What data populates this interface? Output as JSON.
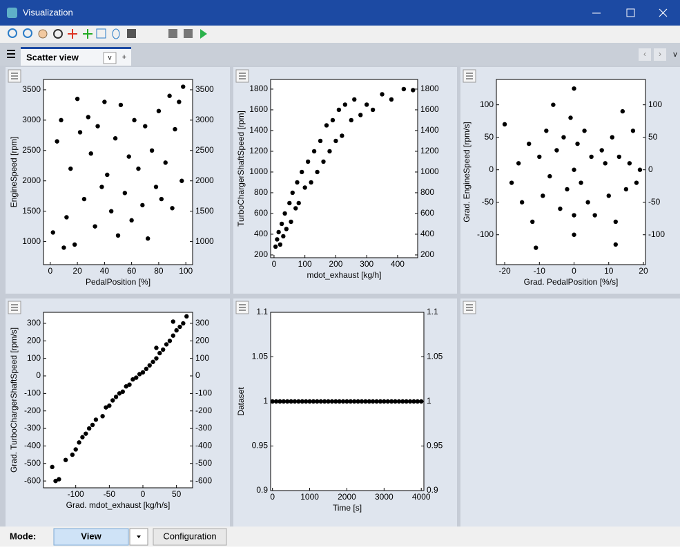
{
  "window": {
    "title": "Visualization"
  },
  "tab": {
    "label": "Scatter view",
    "menu": "v",
    "add": "+",
    "nav": [
      "‹",
      "›",
      "v"
    ]
  },
  "mode": {
    "label": "Mode:",
    "value": "View",
    "button": "Configuration"
  },
  "chart_data": [
    {
      "type": "scatter",
      "xlabel": "PedalPosition [%]",
      "ylabel": "EngineSpeed [rpm]",
      "color": "#000000",
      "xlim": [
        -5,
        105
      ],
      "ylim": [
        620,
        3670
      ],
      "xticks": [
        0,
        20,
        40,
        60,
        80,
        100
      ],
      "yticks": [
        1000,
        1500,
        2000,
        2500,
        3000,
        3500
      ],
      "y2lim": [
        620,
        3670
      ],
      "y2ticks": [
        1000,
        1500,
        2000,
        2500,
        3000,
        3500
      ],
      "x": [
        2,
        5,
        8,
        12,
        15,
        18,
        20,
        22,
        25,
        28,
        30,
        33,
        35,
        38,
        40,
        42,
        45,
        48,
        50,
        52,
        55,
        58,
        60,
        62,
        65,
        68,
        70,
        72,
        75,
        78,
        80,
        82,
        85,
        88,
        90,
        92,
        95,
        97,
        98,
        10
      ],
      "values": [
        1150,
        2650,
        3000,
        1400,
        2200,
        950,
        3350,
        2800,
        1700,
        3050,
        2450,
        1250,
        2900,
        1900,
        3300,
        2100,
        1500,
        2700,
        1100,
        3250,
        1800,
        2400,
        1350,
        3000,
        2200,
        1600,
        2900,
        1050,
        2500,
        1900,
        3150,
        1700,
        2300,
        3400,
        1550,
        2850,
        3300,
        2000,
        3550,
        900
      ]
    },
    {
      "type": "scatter",
      "xlabel": "mdot_exhaust [kg/h]",
      "ylabel": "TurboChargerShaftSpeed [rpm]",
      "color": "#000000",
      "xlim": [
        -11,
        465
      ],
      "ylim": [
        173,
        1893
      ],
      "xticks": [
        0,
        100,
        200,
        300,
        400
      ],
      "yticks": [
        200,
        400,
        600,
        800,
        1000,
        1200,
        1400,
        1600,
        1800
      ],
      "y2lim": [
        173,
        1893
      ],
      "y2ticks": [
        200,
        400,
        600,
        800,
        1000,
        1200,
        1400,
        1600,
        1800
      ],
      "x": [
        5,
        10,
        15,
        20,
        25,
        30,
        35,
        40,
        50,
        55,
        60,
        70,
        75,
        80,
        90,
        100,
        110,
        120,
        130,
        140,
        150,
        160,
        170,
        180,
        190,
        200,
        210,
        220,
        230,
        250,
        260,
        280,
        300,
        320,
        350,
        380,
        420,
        450
      ],
      "values": [
        280,
        350,
        420,
        300,
        500,
        380,
        600,
        450,
        700,
        520,
        800,
        650,
        900,
        700,
        1000,
        850,
        1100,
        900,
        1200,
        1000,
        1300,
        1100,
        1450,
        1200,
        1500,
        1300,
        1600,
        1350,
        1650,
        1500,
        1700,
        1550,
        1650,
        1600,
        1750,
        1700,
        1800,
        1790
      ]
    },
    {
      "type": "scatter",
      "xlabel": "Grad. PedalPosition [%/s]",
      "ylabel": "Grad. EngineSpeed [rpm/s]",
      "color": "#000000",
      "xlim": [
        -22.4,
        20.6
      ],
      "ylim": [
        -146,
        139
      ],
      "xticks": [
        -20,
        -10,
        0,
        10,
        20
      ],
      "yticks": [
        -100,
        -50,
        0,
        50,
        100
      ],
      "y2lim": [
        -146,
        139
      ],
      "y2ticks": [
        -100,
        -50,
        0,
        50,
        100
      ],
      "x": [
        -20,
        -18,
        -16,
        -15,
        -13,
        -12,
        -10,
        -9,
        -8,
        -7,
        -5,
        -4,
        -3,
        -2,
        -1,
        0,
        0,
        0,
        1,
        2,
        3,
        4,
        5,
        6,
        8,
        9,
        10,
        11,
        12,
        13,
        14,
        15,
        16,
        17,
        18,
        19,
        -6,
        0,
        12,
        -11
      ],
      "values": [
        70,
        -20,
        10,
        -50,
        40,
        -80,
        20,
        -40,
        60,
        -10,
        30,
        -60,
        50,
        -30,
        80,
        125,
        -100,
        0,
        40,
        -20,
        60,
        -50,
        20,
        -70,
        30,
        10,
        -40,
        50,
        -80,
        20,
        90,
        -30,
        10,
        60,
        -20,
        0,
        100,
        -70,
        -115,
        -120
      ]
    },
    {
      "type": "scatter",
      "xlabel": "Grad. mdot_exhaust [kg/h/s]",
      "ylabel": "Grad. TurboChargerShaftSpeed [rpm/s]",
      "color": "#000000",
      "xlim": [
        -148,
        74
      ],
      "ylim": [
        -639,
        363
      ],
      "xticks": [
        -100,
        -50,
        0,
        50
      ],
      "yticks": [
        -600,
        -500,
        -400,
        -300,
        -200,
        -100,
        0,
        100,
        200,
        300
      ],
      "y2lim": [
        -639,
        363
      ],
      "y2ticks": [
        -600,
        -500,
        -400,
        -300,
        -200,
        -100,
        0,
        100,
        200,
        300
      ],
      "x": [
        -135,
        -125,
        -115,
        -105,
        -100,
        -95,
        -90,
        -80,
        -75,
        -70,
        -60,
        -55,
        -50,
        -45,
        -40,
        -35,
        -30,
        -25,
        -20,
        -15,
        -10,
        -5,
        0,
        5,
        10,
        15,
        20,
        25,
        30,
        35,
        40,
        45,
        50,
        55,
        60,
        -130,
        -85,
        20,
        45,
        65
      ],
      "values": [
        -520,
        -590,
        -480,
        -450,
        -420,
        -380,
        -350,
        -300,
        -280,
        -250,
        -230,
        -180,
        -170,
        -140,
        -120,
        -100,
        -90,
        -60,
        -50,
        -20,
        -10,
        10,
        20,
        40,
        60,
        80,
        100,
        130,
        150,
        180,
        200,
        230,
        260,
        280,
        300,
        -600,
        -330,
        160,
        310,
        340
      ]
    },
    {
      "type": "scatter",
      "xlabel": "Time [s]",
      "ylabel": "Dataset",
      "color": "#000000",
      "xlim": [
        -50,
        4070
      ],
      "ylim": [
        0.9,
        1.1
      ],
      "xticks": [
        0,
        1000,
        2000,
        3000,
        4000
      ],
      "yticks": [
        0.9,
        0.95,
        1,
        1.05,
        1.1
      ],
      "y2lim": [
        0.9,
        1.1
      ],
      "y2ticks": [
        0.9,
        0.95,
        1,
        1.05,
        1.1
      ],
      "x": [
        0,
        100,
        200,
        300,
        400,
        500,
        600,
        700,
        800,
        900,
        1000,
        1100,
        1200,
        1300,
        1400,
        1500,
        1600,
        1700,
        1800,
        1900,
        2000,
        2100,
        2200,
        2300,
        2400,
        2500,
        2600,
        2700,
        2800,
        2900,
        3000,
        3100,
        3200,
        3300,
        3400,
        3500,
        3600,
        3700,
        3800,
        3900,
        4000
      ],
      "values": [
        1,
        1,
        1,
        1,
        1,
        1,
        1,
        1,
        1,
        1,
        1,
        1,
        1,
        1,
        1,
        1,
        1,
        1,
        1,
        1,
        1,
        1,
        1,
        1,
        1,
        1,
        1,
        1,
        1,
        1,
        1,
        1,
        1,
        1,
        1,
        1,
        1,
        1,
        1,
        1,
        1
      ]
    }
  ]
}
